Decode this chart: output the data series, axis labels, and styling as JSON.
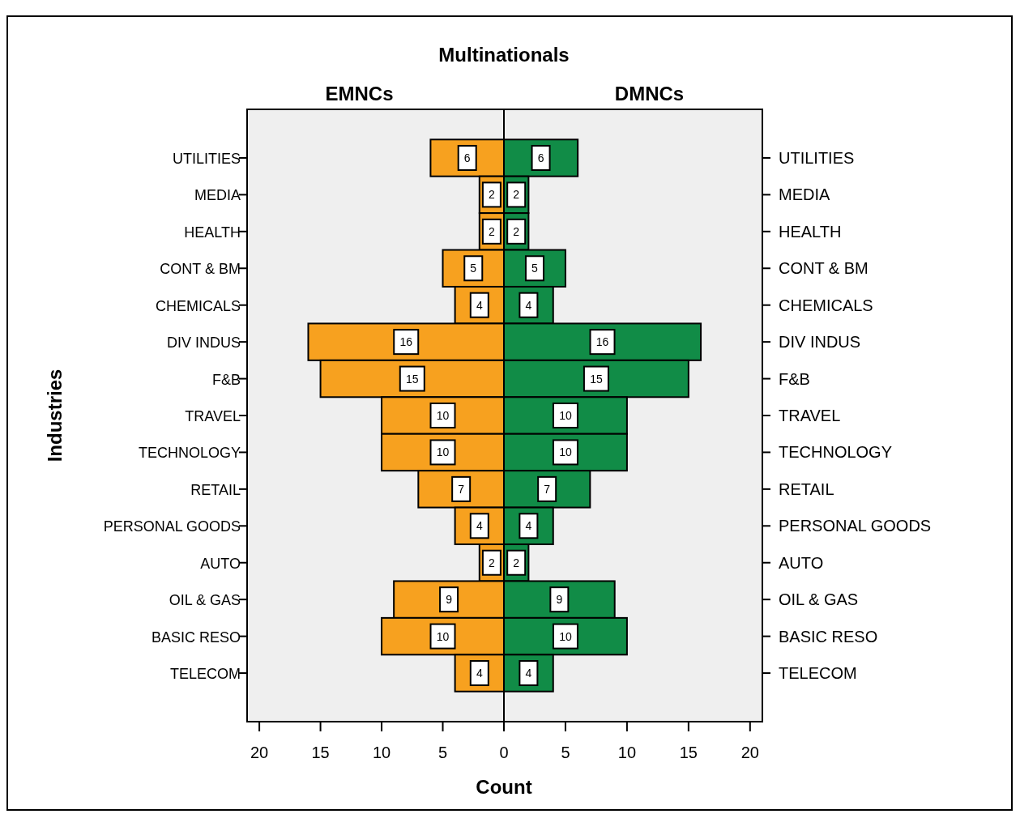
{
  "chart_data": [
    {
      "type": "bar",
      "orientation": "horizontal",
      "title": "Multinationals",
      "subtitle": "EMNCs",
      "ylabel": "Industries",
      "xlabel": "Count",
      "categories": [
        "UTILITIES",
        "MEDIA",
        "HEALTH",
        "CONT & BM",
        "CHEMICALS",
        "DIV INDUS",
        "F&B",
        "TRAVEL",
        "TECHNOLOGY",
        "RETAIL",
        "PERSONAL GOODS",
        "AUTO",
        "OIL & GAS",
        "BASIC RESO",
        "TELECOM"
      ],
      "series": [
        {
          "color": "#f7a11f",
          "values": [
            6,
            2,
            2,
            5,
            4,
            16,
            15,
            10,
            10,
            7,
            4,
            2,
            9,
            10,
            4
          ]
        }
      ],
      "xlim": [
        21,
        0
      ],
      "xticks": [
        20,
        15,
        10,
        5,
        0
      ],
      "data_labels": true
    },
    {
      "type": "bar",
      "orientation": "horizontal",
      "subtitle": "DMNCs",
      "categories": [
        "UTILITIES",
        "MEDIA",
        "HEALTH",
        "CONT & BM",
        "CHEMICALS",
        "DIV INDUS",
        "F&B",
        "TRAVEL",
        "TECHNOLOGY",
        "RETAIL",
        "PERSONAL GOODS",
        "AUTO",
        "OIL & GAS",
        "BASIC RESO",
        "TELECOM"
      ],
      "series": [
        {
          "color": "#118c47",
          "values": [
            6,
            2,
            2,
            5,
            4,
            16,
            15,
            10,
            10,
            7,
            4,
            2,
            9,
            10,
            4
          ]
        }
      ],
      "xlim": [
        0,
        21
      ],
      "xticks": [
        {
          "value": 0,
          "label": null
        },
        5,
        10,
        15,
        20
      ],
      "data_labels": true
    }
  ]
}
